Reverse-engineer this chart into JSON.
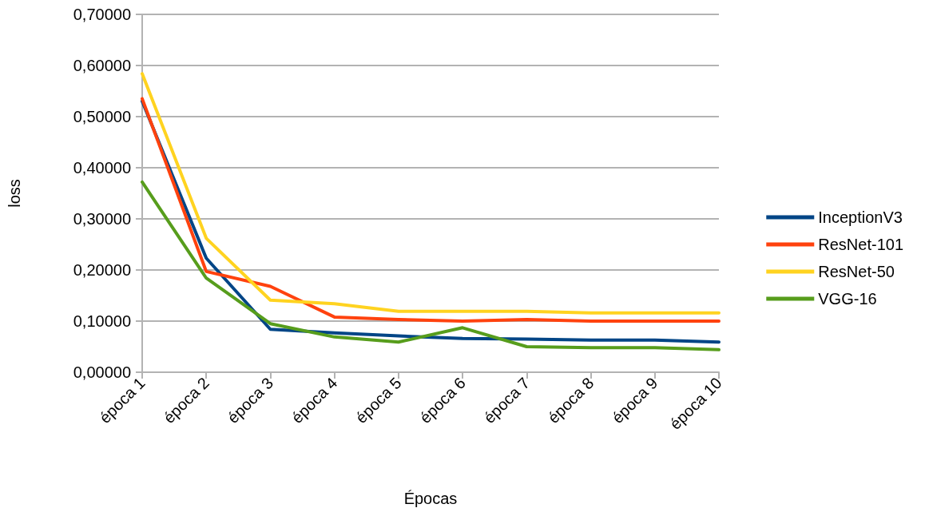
{
  "chart_data": {
    "type": "line",
    "xlabel": "Épocas",
    "ylabel": "loss",
    "categories": [
      "época 1",
      "época 2",
      "época 3",
      "época 4",
      "época 5",
      "época 6",
      "época 7",
      "época 8",
      "época 9",
      "época 10"
    ],
    "series": [
      {
        "name": "InceptionV3",
        "color": "#004586",
        "values": [
          0.53,
          0.223,
          0.084,
          0.077,
          0.071,
          0.066,
          0.065,
          0.063,
          0.063,
          0.059
        ]
      },
      {
        "name": "ResNet-101",
        "color": "#ff420e",
        "values": [
          0.535,
          0.197,
          0.168,
          0.108,
          0.103,
          0.1,
          0.103,
          0.1,
          0.1,
          0.1
        ]
      },
      {
        "name": "ResNet-50",
        "color": "#ffd320",
        "values": [
          0.584,
          0.262,
          0.141,
          0.134,
          0.119,
          0.119,
          0.119,
          0.116,
          0.116,
          0.116
        ]
      },
      {
        "name": "VGG-16",
        "color": "#579d1c",
        "values": [
          0.372,
          0.184,
          0.095,
          0.069,
          0.059,
          0.087,
          0.05,
          0.048,
          0.048,
          0.044
        ]
      }
    ],
    "ylim": [
      0,
      0.7
    ],
    "yticks": [
      {
        "value": 0,
        "label": "0,00000"
      },
      {
        "value": 0.1,
        "label": "0,10000"
      },
      {
        "value": 0.2,
        "label": "0,20000"
      },
      {
        "value": 0.3,
        "label": "0,30000"
      },
      {
        "value": 0.4,
        "label": "0,40000"
      },
      {
        "value": 0.5,
        "label": "0,50000"
      },
      {
        "value": 0.6,
        "label": "0,60000"
      },
      {
        "value": 0.7,
        "label": "0,70000"
      }
    ],
    "grid": "y",
    "legend": "right",
    "marker": "none",
    "line_style": "solid"
  }
}
